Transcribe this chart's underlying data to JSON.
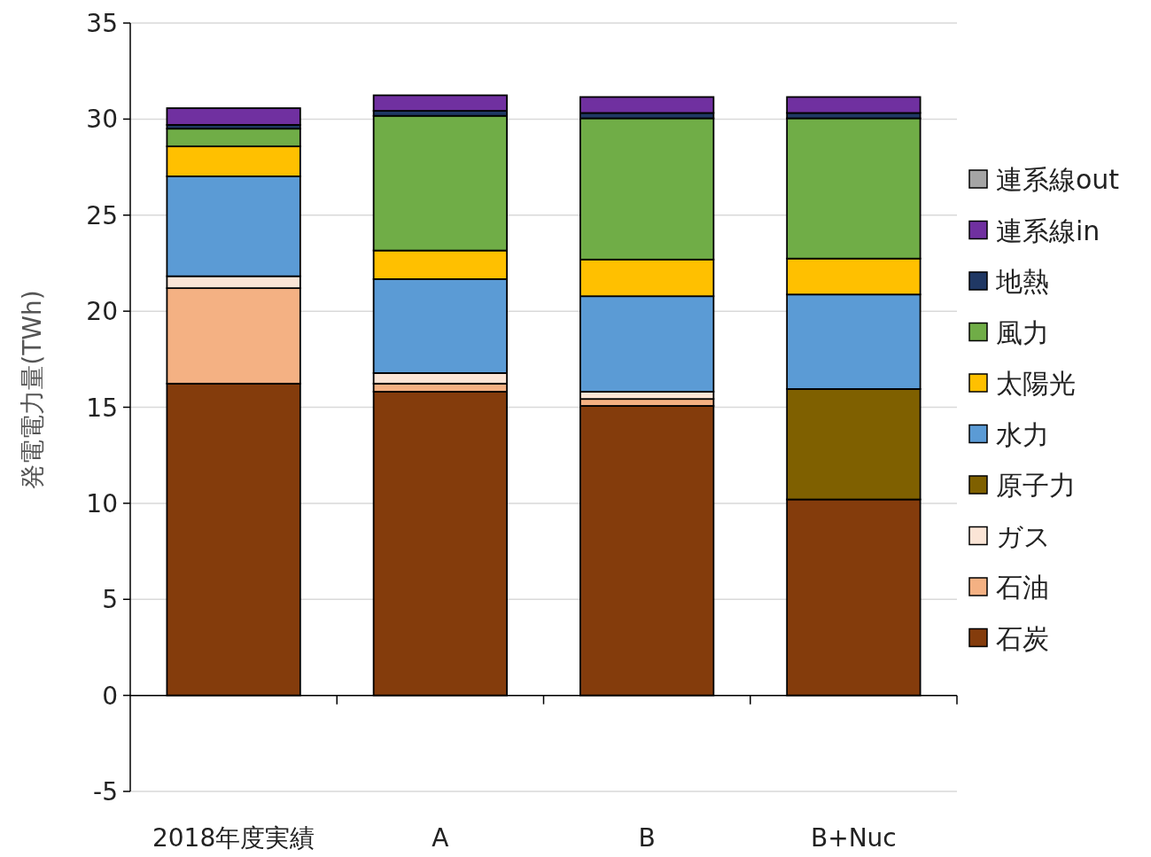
{
  "chart_data": {
    "type": "bar",
    "stacked": true,
    "ylabel": "発電電力量(TWh)",
    "categories": [
      "2018年度実績",
      "A",
      "B",
      "B+Nuc"
    ],
    "series": [
      {
        "name": "石炭",
        "color": "#843c0c",
        "values": [
          16.23,
          15.81,
          15.07,
          10.2
        ]
      },
      {
        "name": "石油",
        "color": "#f4b183",
        "values": [
          4.97,
          0.42,
          0.36,
          0
        ]
      },
      {
        "name": "ガス",
        "color": "#fbe5d6",
        "values": [
          0.62,
          0.55,
          0.38,
          0
        ]
      },
      {
        "name": "原子力",
        "color": "#7f6000",
        "values": [
          0,
          0,
          0,
          5.75
        ]
      },
      {
        "name": "水力",
        "color": "#5b9bd5",
        "values": [
          5.2,
          4.89,
          4.97,
          4.92
        ]
      },
      {
        "name": "太陽光",
        "color": "#ffc000",
        "values": [
          1.56,
          1.49,
          1.91,
          1.87
        ]
      },
      {
        "name": "風力",
        "color": "#70ad47",
        "values": [
          0.92,
          7.01,
          7.35,
          7.3
        ]
      },
      {
        "name": "地熱",
        "color": "#203864",
        "values": [
          0.2,
          0.26,
          0.28,
          0.28
        ]
      },
      {
        "name": "連系線in",
        "color": "#7030a0",
        "values": [
          0.87,
          0.81,
          0.83,
          0.83
        ]
      },
      {
        "name": "連系線out",
        "color": "#a5a5a5",
        "values": [
          0,
          0,
          0,
          0
        ]
      }
    ],
    "ylim": [
      -5,
      35
    ],
    "yticks": [
      -5,
      0,
      5,
      10,
      15,
      20,
      25,
      30,
      35
    ],
    "grid": "y",
    "legend": "right"
  }
}
